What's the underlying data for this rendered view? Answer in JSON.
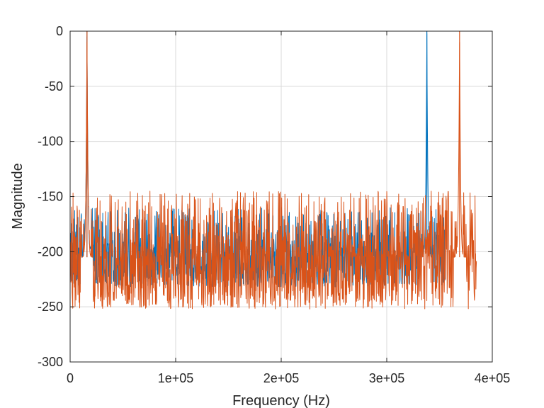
{
  "chart_data": {
    "type": "line",
    "title": "",
    "xlabel": "Frequency (Hz)",
    "ylabel": "Magnitude",
    "xlim": [
      0,
      400000
    ],
    "ylim": [
      -300,
      0
    ],
    "grid": true,
    "legend": "none",
    "x_ticks": [
      0,
      100000,
      200000,
      300000,
      400000
    ],
    "x_tick_labels": [
      "0",
      "1e+05",
      "2e+05",
      "3e+05",
      "4e+05"
    ],
    "y_ticks": [
      0,
      -50,
      -100,
      -150,
      -200,
      -250,
      -300
    ],
    "y_tick_labels": [
      "0",
      "-50",
      "-100",
      "-150",
      "-200",
      "-250",
      "-300"
    ],
    "series": [
      {
        "color": "#0072BD",
        "x_range": [
          0,
          355000
        ],
        "noise_floor": {
          "center": -205,
          "min": -232,
          "max": -160
        },
        "peaks": [
          {
            "x": 16000,
            "y": 0
          },
          {
            "x": 338000,
            "y": 0
          }
        ],
        "bumps": [
          {
            "x": 17000,
            "y": -185
          }
        ]
      },
      {
        "color": "#D95319",
        "x_range": [
          0,
          385000
        ],
        "noise_floor": {
          "center": -205,
          "min": -252,
          "max": -145
        },
        "peaks": [
          {
            "x": 16000,
            "y": 0
          },
          {
            "x": 369000,
            "y": 0
          }
        ],
        "bumps": []
      }
    ]
  }
}
